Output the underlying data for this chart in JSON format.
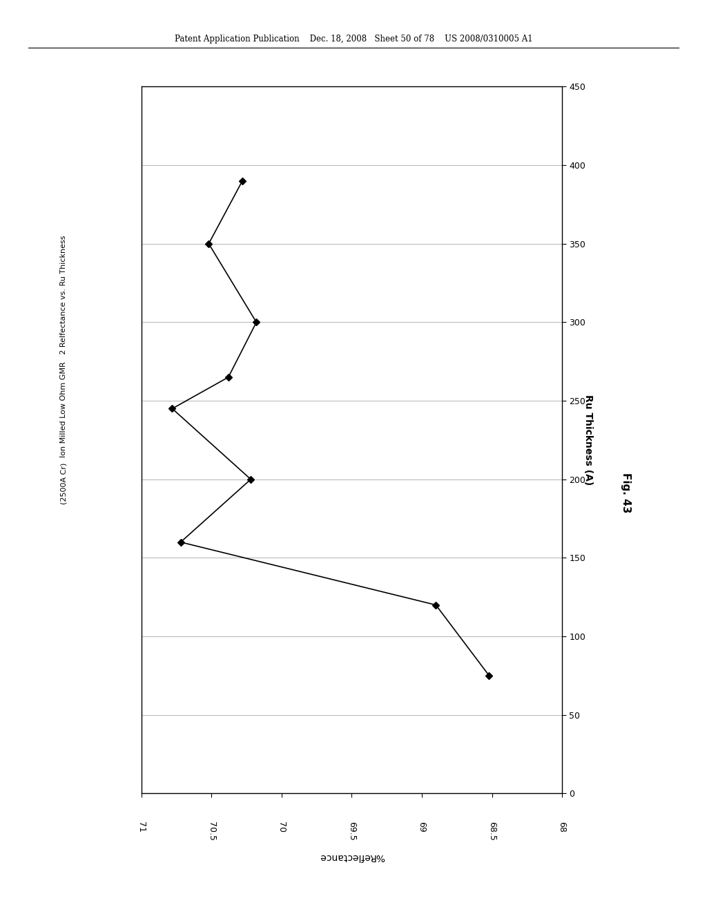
{
  "header": "Patent Application Publication    Dec. 18, 2008   Sheet 50 of 78    US 2008/0310005 A1",
  "title_line1": "Ion Milled Low Ohm GMR   2 Relfectance vs. Ru Thickness",
  "title_line2": "(2500A Cr)",
  "x_label": "%Reflectance",
  "y_label": "Ru Thickness (A)",
  "fig_caption": "Fig. 43",
  "ru_thickness": [
    75,
    120,
    160,
    200,
    245,
    265,
    300,
    350,
    390
  ],
  "reflectance": [
    68.52,
    68.9,
    70.72,
    70.22,
    70.78,
    70.38,
    70.18,
    70.52,
    70.28
  ],
  "xlim": [
    71,
    68
  ],
  "ylim": [
    0,
    450
  ],
  "x_ticks": [
    71,
    70.5,
    70,
    69.5,
    69,
    68.5,
    68
  ],
  "x_tick_labels": [
    "71",
    "70.5",
    "70",
    "69.5",
    "69",
    "68.5",
    "68"
  ],
  "y_ticks": [
    0,
    50,
    100,
    150,
    200,
    250,
    300,
    350,
    400,
    450
  ],
  "y_tick_labels": [
    "0",
    "50",
    "100",
    "150",
    "200",
    "250",
    "300",
    "350",
    "400",
    "450"
  ],
  "bg_color": "#ffffff",
  "line_color": "#000000",
  "grid_color": "#bbbbbb"
}
